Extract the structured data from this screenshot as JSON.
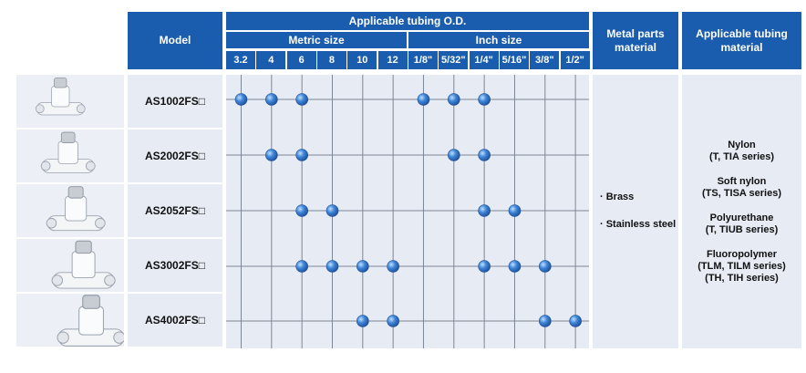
{
  "header": {
    "model": "Model",
    "applicable_od": "Applicable tubing O.D.",
    "metric_size": "Metric size",
    "inch_size": "Inch size",
    "metal_parts": [
      "Metal parts",
      "material"
    ],
    "applicable_material": [
      "Applicable tubing",
      "material"
    ]
  },
  "sizes": {
    "metric": [
      "3.2",
      "4",
      "6",
      "8",
      "10",
      "12"
    ],
    "inch": [
      "1/8\"",
      "5/32\"",
      "1/4\"",
      "5/16\"",
      "3/8\"",
      "1/2\""
    ]
  },
  "rows": [
    {
      "model": "AS1002FS□",
      "applicable": [
        1,
        1,
        1,
        0,
        0,
        0,
        1,
        1,
        1,
        0,
        0,
        0
      ]
    },
    {
      "model": "AS2002FS□",
      "applicable": [
        0,
        1,
        1,
        0,
        0,
        0,
        0,
        1,
        1,
        0,
        0,
        0
      ]
    },
    {
      "model": "AS2052FS□",
      "applicable": [
        0,
        0,
        1,
        1,
        0,
        0,
        0,
        0,
        1,
        1,
        0,
        0
      ]
    },
    {
      "model": "AS3002FS□",
      "applicable": [
        0,
        0,
        1,
        1,
        1,
        1,
        0,
        0,
        1,
        1,
        1,
        0
      ]
    },
    {
      "model": "AS4002FS□",
      "applicable": [
        0,
        0,
        0,
        0,
        1,
        1,
        0,
        0,
        0,
        0,
        1,
        1
      ]
    }
  ],
  "metal_materials": [
    "· Brass",
    "· Stainless steel"
  ],
  "tubing_materials": [
    [
      "Nylon",
      "(T, TIA series)"
    ],
    [
      "Soft nylon",
      "(TS, TISA series)"
    ],
    [
      "Polyurethane",
      "(T, TIUB series)"
    ],
    [
      "Fluoropolymer",
      "(TLM, TILM series)",
      "(TH, TIH series)"
    ]
  ],
  "colors": {
    "header_blue": "#1a5cae",
    "panel": "#e6ebf4",
    "dot": "#3f86d8"
  }
}
